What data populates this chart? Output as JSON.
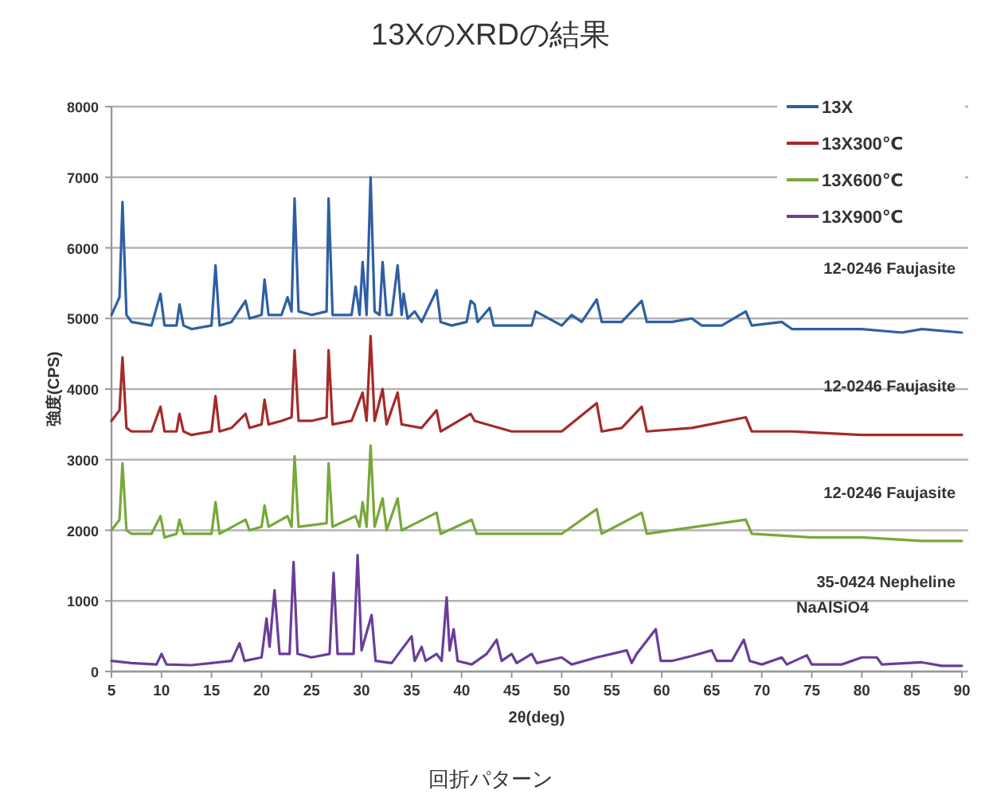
{
  "chart_data": {
    "type": "line",
    "title": "13XのXRDの結果",
    "xlabel": "2θ(deg)",
    "ylabel": "強度(CPS)",
    "xlim": [
      5,
      90
    ],
    "ylim": [
      0,
      8000
    ],
    "xticks": [
      5,
      10,
      15,
      20,
      25,
      30,
      35,
      40,
      45,
      50,
      55,
      60,
      65,
      70,
      75,
      80,
      85,
      90
    ],
    "yticks": [
      0,
      1000,
      2000,
      3000,
      4000,
      5000,
      6000,
      7000,
      8000
    ],
    "grid": "y",
    "legend": "top right",
    "marker": "none",
    "line_style": "solid",
    "series": [
      {
        "name": "13X",
        "color": "#2e5fa3",
        "x": [
          5,
          5.8,
          6.1,
          6.5,
          7,
          9,
          9.9,
          10.3,
          11.5,
          11.8,
          12.2,
          13,
          15,
          15.4,
          15.8,
          17,
          18.4,
          18.8,
          20,
          20.3,
          20.7,
          22,
          22.6,
          23,
          23.3,
          23.7,
          25,
          26.5,
          26.7,
          27.1,
          29,
          29.4,
          29.8,
          30.1,
          30.5,
          30.9,
          31.3,
          31.8,
          32.1,
          32.5,
          33,
          33.6,
          34,
          34.2,
          34.6,
          35.3,
          36,
          37.5,
          37.9,
          39,
          40.5,
          40.9,
          41.3,
          41.6,
          42.8,
          43.2,
          45,
          47,
          47.4,
          50,
          51,
          52,
          53.5,
          54,
          56,
          58,
          58.5,
          61,
          63,
          64,
          66,
          68.4,
          69,
          72,
          73,
          76,
          80,
          84,
          86,
          90
        ],
        "values": [
          5050,
          5300,
          6650,
          5050,
          4950,
          4900,
          5350,
          4900,
          4900,
          5200,
          4900,
          4850,
          4900,
          5750,
          4900,
          4950,
          5250,
          5000,
          5050,
          5550,
          5050,
          5050,
          5300,
          5100,
          6700,
          5100,
          5050,
          5100,
          6700,
          5050,
          5050,
          5450,
          5050,
          5800,
          5050,
          7000,
          5100,
          5050,
          5800,
          5050,
          5050,
          5750,
          5050,
          5350,
          5000,
          5100,
          4950,
          5400,
          4950,
          4900,
          4950,
          5250,
          5200,
          4950,
          5150,
          4900,
          4900,
          4900,
          5100,
          4900,
          5050,
          4950,
          5270,
          4950,
          4950,
          5250,
          4950,
          4950,
          5000,
          4900,
          4900,
          5100,
          4900,
          4950,
          4850,
          4850,
          4850,
          4800,
          4850,
          4800
        ]
      },
      {
        "name": "13X300℃",
        "color": "#a52a2a",
        "x": [
          5,
          5.8,
          6.1,
          6.5,
          7,
          9,
          9.9,
          10.3,
          11.5,
          11.8,
          12.2,
          13,
          15,
          15.4,
          15.8,
          17,
          18.4,
          18.8,
          20,
          20.3,
          20.7,
          22,
          23,
          23.3,
          23.7,
          25,
          26.5,
          26.7,
          27.1,
          29,
          30.1,
          30.5,
          30.9,
          31.3,
          32.1,
          32.5,
          33.6,
          34,
          36,
          37.5,
          37.9,
          40.9,
          41.3,
          45,
          50,
          53.5,
          54,
          56,
          58,
          58.5,
          63,
          68.4,
          69,
          73,
          80,
          86,
          90
        ],
        "values": [
          3550,
          3700,
          4450,
          3450,
          3400,
          3400,
          3750,
          3400,
          3400,
          3650,
          3400,
          3350,
          3400,
          3900,
          3400,
          3450,
          3650,
          3450,
          3500,
          3850,
          3500,
          3550,
          3600,
          4550,
          3550,
          3550,
          3600,
          4550,
          3500,
          3550,
          3950,
          3550,
          4750,
          3550,
          4000,
          3500,
          3950,
          3500,
          3450,
          3700,
          3400,
          3650,
          3550,
          3400,
          3400,
          3800,
          3400,
          3450,
          3750,
          3400,
          3450,
          3600,
          3400,
          3400,
          3350,
          3350,
          3350
        ]
      },
      {
        "name": "13X600℃",
        "color": "#77a83a",
        "x": [
          5,
          5.8,
          6.1,
          6.5,
          7,
          9,
          9.9,
          10.3,
          11.5,
          11.8,
          12.2,
          15,
          15.4,
          15.8,
          18.4,
          18.8,
          20,
          20.3,
          20.7,
          22.6,
          23,
          23.3,
          23.7,
          26.5,
          26.7,
          27.1,
          29.4,
          29.8,
          30.1,
          30.5,
          30.9,
          31.3,
          32.1,
          32.5,
          33.6,
          34,
          37.5,
          37.9,
          41,
          41.5,
          45,
          50,
          53.5,
          54,
          58,
          58.5,
          68.4,
          69,
          75,
          80,
          86,
          90
        ],
        "values": [
          2000,
          2150,
          2950,
          2000,
          1950,
          1950,
          2200,
          1900,
          1950,
          2150,
          1950,
          1950,
          2400,
          1950,
          2150,
          2000,
          2050,
          2350,
          2050,
          2200,
          2050,
          3050,
          2050,
          2100,
          2950,
          2050,
          2200,
          2050,
          2400,
          2050,
          3200,
          2050,
          2450,
          2000,
          2450,
          2000,
          2250,
          1950,
          2150,
          1950,
          1950,
          1950,
          2300,
          1950,
          2250,
          1950,
          2150,
          1950,
          1900,
          1900,
          1850,
          1850
        ]
      },
      {
        "name": "13X900℃",
        "color": "#6a3d9a",
        "x": [
          5,
          7,
          9.5,
          10,
          10.5,
          13,
          17,
          17.8,
          18.3,
          20,
          20.5,
          20.8,
          21.3,
          21.8,
          22.8,
          23.2,
          23.6,
          25,
          26.8,
          27.2,
          27.6,
          29.2,
          29.6,
          30,
          31,
          31.4,
          33,
          35,
          35.3,
          36,
          36.4,
          37.5,
          38,
          38.5,
          38.8,
          39.2,
          39.6,
          41,
          42.5,
          43.5,
          44,
          45,
          45.5,
          47,
          47.5,
          50,
          51,
          53.5,
          56.5,
          57,
          57.5,
          59.4,
          59.9,
          61,
          63,
          65,
          65.5,
          67,
          68.2,
          68.8,
          70,
          72,
          72.5,
          74.5,
          75,
          78,
          80,
          81.5,
          82,
          86,
          88,
          90
        ],
        "values": [
          150,
          120,
          100,
          250,
          100,
          90,
          150,
          400,
          150,
          200,
          750,
          350,
          1150,
          250,
          250,
          1550,
          250,
          200,
          250,
          1400,
          250,
          250,
          1650,
          300,
          800,
          150,
          120,
          500,
          150,
          350,
          150,
          250,
          150,
          1050,
          300,
          600,
          150,
          100,
          250,
          450,
          150,
          250,
          120,
          250,
          120,
          200,
          100,
          200,
          300,
          120,
          250,
          600,
          150,
          150,
          220,
          300,
          150,
          150,
          450,
          150,
          100,
          200,
          100,
          230,
          100,
          100,
          200,
          200,
          100,
          130,
          80,
          80
        ]
      }
    ],
    "annotations": [
      "12-0246 Faujasite",
      "12-0246 Faujasite",
      "12-0246 Faujasite",
      "35-0424 Nepheline",
      "NaAlSiO4",
      "回折パターン"
    ]
  }
}
